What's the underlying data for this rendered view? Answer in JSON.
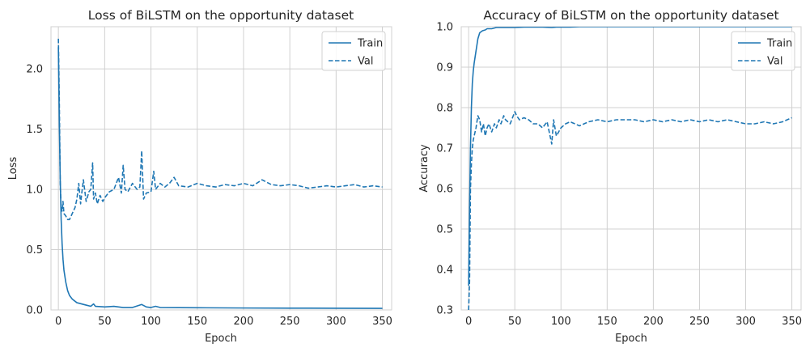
{
  "chart_data": [
    {
      "type": "line",
      "title": "Loss of BiLSTM on the opportunity dataset",
      "xlabel": "Epoch",
      "ylabel": "Loss",
      "xlim": [
        -8,
        360
      ],
      "ylim": [
        0,
        2.35
      ],
      "xticks": [
        "0",
        "50",
        "100",
        "150",
        "200",
        "250",
        "300",
        "350"
      ],
      "xtick_values": [
        0,
        50,
        100,
        150,
        200,
        250,
        300,
        350
      ],
      "yticks": [
        "0.0",
        "0.5",
        "1.0",
        "1.5",
        "2.0"
      ],
      "ytick_values": [
        0,
        0.5,
        1.0,
        1.5,
        2.0
      ],
      "grid": true,
      "legend": "top-right",
      "color": "#1f77b4",
      "series": [
        {
          "name": "Train",
          "style": "solid",
          "x": [
            0,
            1,
            2,
            3,
            4,
            5,
            6,
            8,
            10,
            12,
            15,
            20,
            25,
            30,
            35,
            38,
            40,
            50,
            60,
            70,
            80,
            90,
            95,
            100,
            105,
            110,
            150,
            200,
            250,
            300,
            350
          ],
          "y": [
            2.18,
            1.55,
            1.08,
            0.75,
            0.55,
            0.42,
            0.33,
            0.23,
            0.16,
            0.12,
            0.09,
            0.06,
            0.05,
            0.04,
            0.03,
            0.05,
            0.03,
            0.025,
            0.03,
            0.02,
            0.02,
            0.045,
            0.025,
            0.02,
            0.03,
            0.02,
            0.018,
            0.016,
            0.015,
            0.014,
            0.013
          ]
        },
        {
          "name": "Val",
          "style": "dashed",
          "x": [
            0,
            1,
            2,
            3,
            4,
            5,
            6,
            8,
            10,
            12,
            15,
            18,
            20,
            22,
            24,
            25,
            27,
            30,
            33,
            35,
            37,
            38,
            40,
            42,
            45,
            48,
            50,
            55,
            60,
            65,
            68,
            70,
            72,
            75,
            80,
            85,
            88,
            90,
            92,
            95,
            100,
            103,
            105,
            110,
            115,
            120,
            125,
            130,
            140,
            150,
            160,
            170,
            180,
            190,
            200,
            210,
            220,
            230,
            240,
            250,
            260,
            270,
            280,
            290,
            300,
            310,
            320,
            330,
            340,
            350
          ],
          "y": [
            2.25,
            1.75,
            1.05,
            0.85,
            0.82,
            0.9,
            0.8,
            0.78,
            0.75,
            0.75,
            0.8,
            0.85,
            0.92,
            1.05,
            0.88,
            0.95,
            1.08,
            0.9,
            0.98,
            1.0,
            1.22,
            0.92,
            0.97,
            0.88,
            0.95,
            0.9,
            0.93,
            0.98,
            1.0,
            1.1,
            0.97,
            1.2,
            1.0,
            0.98,
            1.05,
            1.0,
            1.02,
            1.32,
            0.92,
            0.97,
            0.98,
            1.15,
            1.0,
            1.05,
            1.02,
            1.05,
            1.1,
            1.03,
            1.02,
            1.05,
            1.03,
            1.02,
            1.04,
            1.03,
            1.05,
            1.03,
            1.08,
            1.04,
            1.03,
            1.04,
            1.03,
            1.01,
            1.02,
            1.03,
            1.02,
            1.03,
            1.04,
            1.02,
            1.03,
            1.02
          ]
        }
      ]
    },
    {
      "type": "line",
      "title": "Accuracy of BiLSTM on the opportunity dataset",
      "xlabel": "Epoch",
      "ylabel": "Accuracy",
      "xlim": [
        -8,
        360
      ],
      "ylim": [
        0.3,
        1.0
      ],
      "xticks": [
        "0",
        "50",
        "100",
        "150",
        "200",
        "250",
        "300",
        "350"
      ],
      "xtick_values": [
        0,
        50,
        100,
        150,
        200,
        250,
        300,
        350
      ],
      "yticks": [
        "0.3",
        "0.4",
        "0.5",
        "0.6",
        "0.7",
        "0.8",
        "0.9",
        "1.0"
      ],
      "ytick_values": [
        0.3,
        0.4,
        0.5,
        0.6,
        0.7,
        0.8,
        0.9,
        1.0
      ],
      "grid": true,
      "legend": "top-right",
      "color": "#1f77b4",
      "series": [
        {
          "name": "Train",
          "style": "solid",
          "x": [
            0,
            1,
            2,
            3,
            4,
            5,
            6,
            8,
            10,
            12,
            15,
            18,
            20,
            25,
            30,
            40,
            50,
            60,
            70,
            80,
            90,
            95,
            100,
            110,
            120,
            150,
            200,
            250,
            300,
            350
          ],
          "y": [
            0.36,
            0.55,
            0.7,
            0.8,
            0.86,
            0.89,
            0.91,
            0.94,
            0.97,
            0.985,
            0.99,
            0.992,
            0.995,
            0.995,
            0.998,
            0.998,
            0.998,
            0.999,
            0.999,
            0.999,
            0.998,
            0.999,
            0.999,
            0.999,
            1.0,
            1.0,
            1.0,
            1.0,
            1.0,
            1.0
          ]
        },
        {
          "name": "Val",
          "style": "dashed",
          "x": [
            0,
            1,
            2,
            3,
            4,
            5,
            6,
            8,
            10,
            12,
            14,
            16,
            18,
            20,
            22,
            25,
            28,
            30,
            33,
            35,
            38,
            40,
            45,
            50,
            52,
            55,
            60,
            65,
            70,
            75,
            80,
            85,
            90,
            92,
            95,
            100,
            105,
            110,
            115,
            120,
            125,
            130,
            140,
            150,
            160,
            170,
            180,
            190,
            200,
            210,
            220,
            230,
            240,
            250,
            260,
            270,
            280,
            290,
            300,
            310,
            320,
            330,
            340,
            350
          ],
          "y": [
            0.3,
            0.37,
            0.6,
            0.66,
            0.7,
            0.72,
            0.73,
            0.75,
            0.78,
            0.77,
            0.74,
            0.76,
            0.73,
            0.75,
            0.76,
            0.74,
            0.76,
            0.75,
            0.77,
            0.76,
            0.78,
            0.77,
            0.76,
            0.79,
            0.78,
            0.77,
            0.775,
            0.77,
            0.76,
            0.76,
            0.75,
            0.765,
            0.71,
            0.77,
            0.73,
            0.75,
            0.76,
            0.765,
            0.76,
            0.755,
            0.76,
            0.765,
            0.77,
            0.765,
            0.77,
            0.77,
            0.77,
            0.765,
            0.77,
            0.765,
            0.77,
            0.765,
            0.77,
            0.765,
            0.77,
            0.765,
            0.77,
            0.765,
            0.76,
            0.76,
            0.765,
            0.76,
            0.765,
            0.775
          ]
        }
      ]
    }
  ]
}
